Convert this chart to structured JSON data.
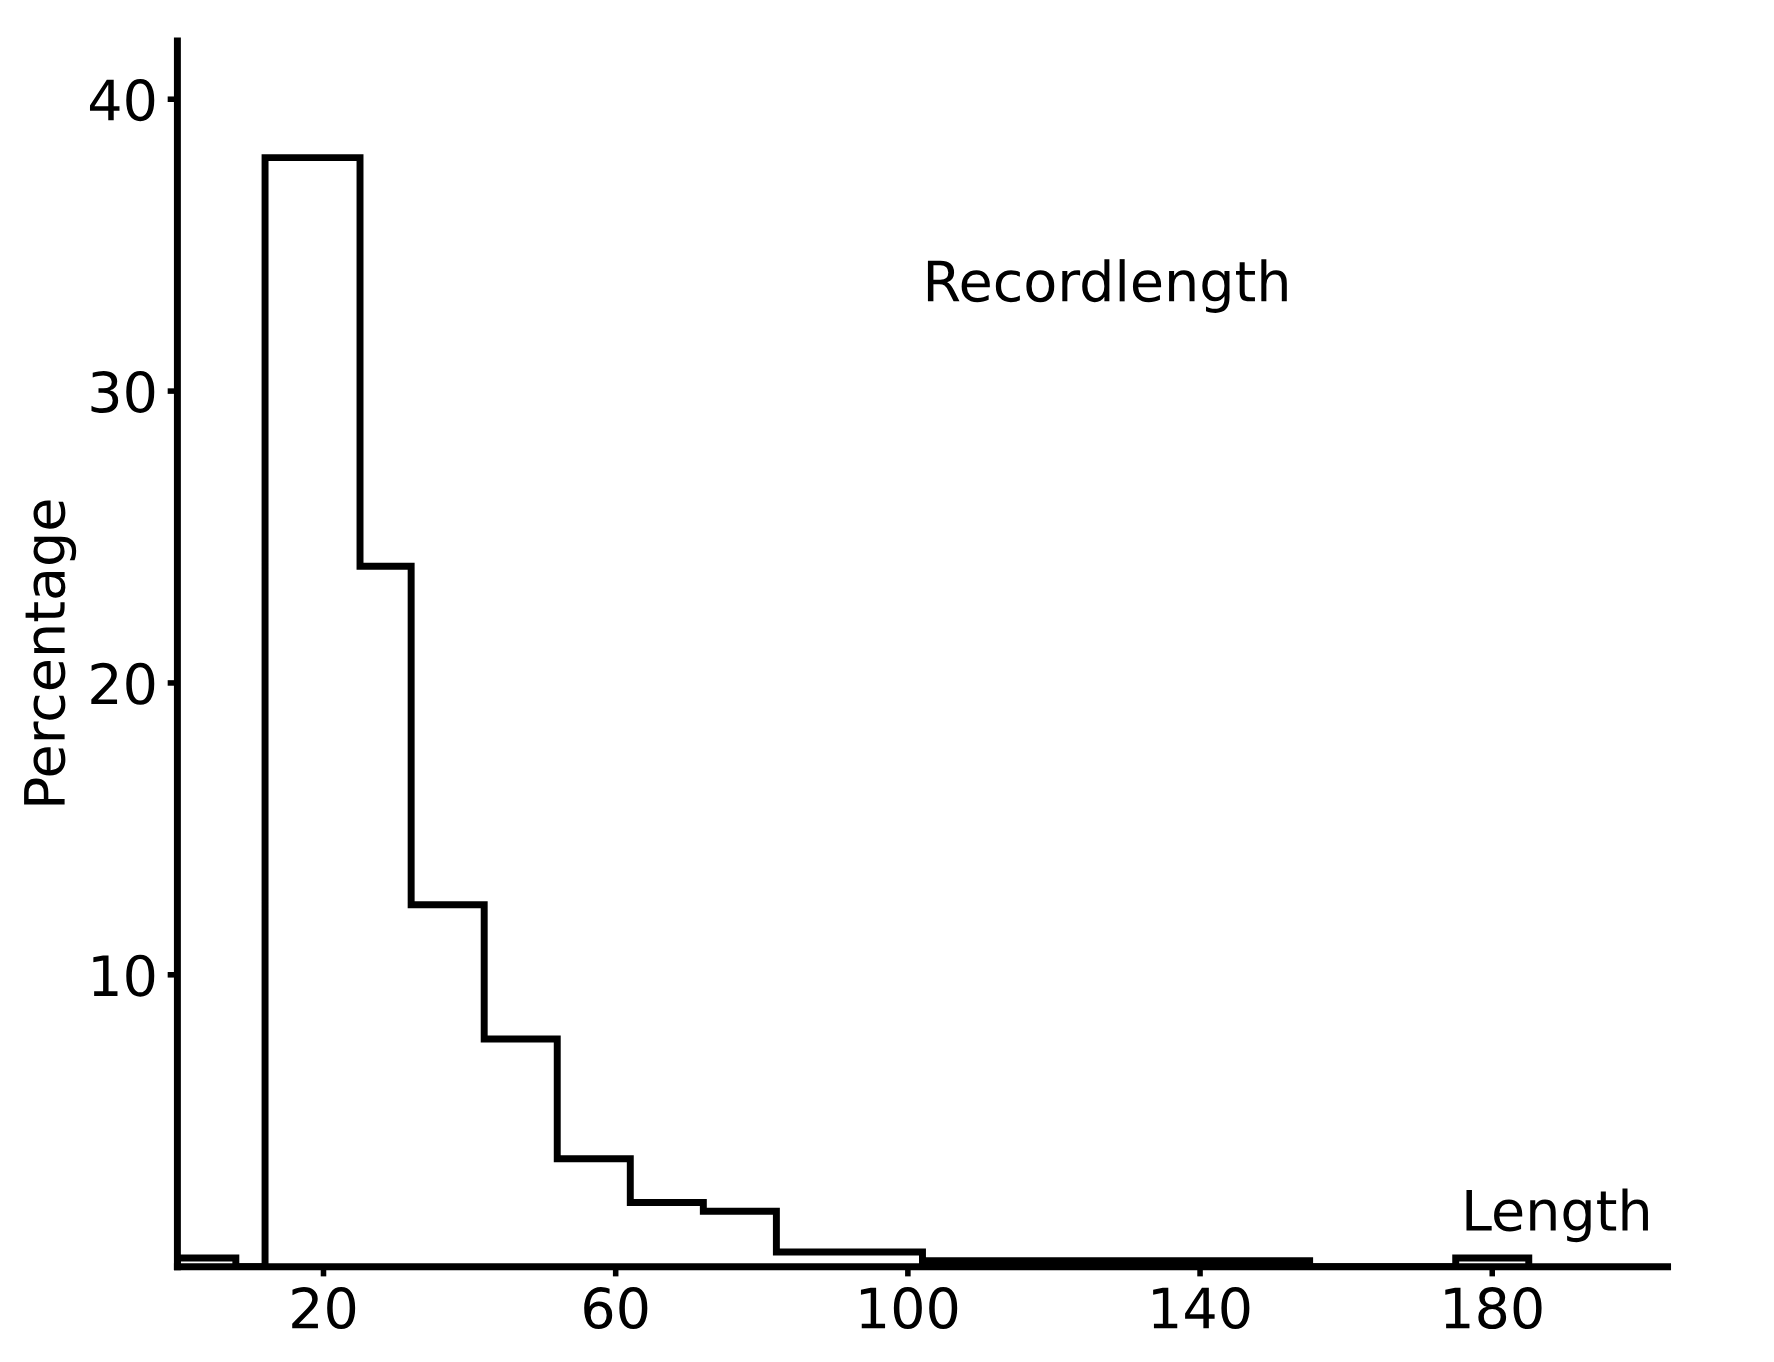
{
  "chart_data": {
    "type": "histogram",
    "annotations": [
      "Recordlength"
    ],
    "xlabel": "Length",
    "ylabel": "Percentage",
    "bins": [
      0,
      8,
      12,
      25,
      32,
      42,
      52,
      62,
      72,
      82,
      102,
      155,
      175,
      185
    ],
    "values": [
      0.3,
      0,
      38,
      24,
      12.4,
      7.8,
      3.7,
      2.2,
      1.9,
      0.5,
      0.2,
      0,
      0.3
    ],
    "color": "#000000",
    "xlim": [
      0,
      204
    ],
    "ylim": [
      0,
      42
    ],
    "xticks": [
      20,
      60,
      100,
      140,
      180
    ],
    "yticks": [
      10,
      20,
      30,
      40
    ],
    "grid": false
  }
}
